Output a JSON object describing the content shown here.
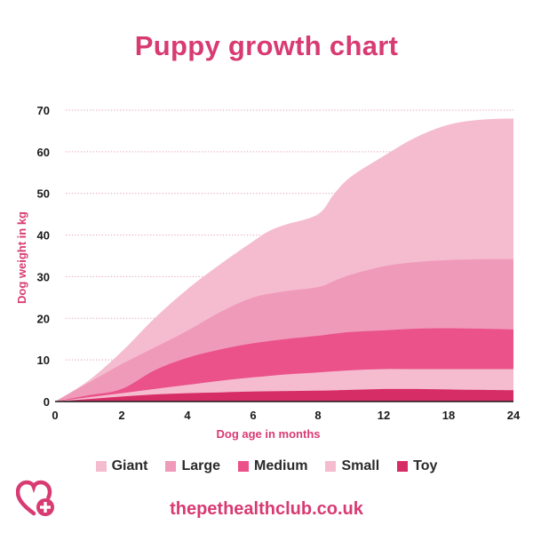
{
  "chart_data": {
    "type": "area",
    "stacked": false,
    "title": "Puppy growth chart",
    "xlabel": "Dog age in months",
    "ylabel": "Dog weight in kg",
    "ylim": [
      0,
      70
    ],
    "yticks": [
      0,
      10,
      20,
      30,
      40,
      50,
      60,
      70
    ],
    "xticks": [
      "0",
      "2",
      "4",
      "6",
      "8",
      "12",
      "18",
      "24"
    ],
    "grid": "horizontal dotted",
    "legend_position": "bottom",
    "series": [
      {
        "name": "Giant",
        "color": "#f5bccf",
        "x": [
          0,
          1,
          2,
          3,
          4,
          5,
          6,
          6.5,
          7,
          8,
          9,
          10,
          12,
          15,
          18,
          21,
          24
        ],
        "values": [
          0,
          5,
          12,
          20,
          27,
          33,
          38.5,
          41,
          42.5,
          45,
          50,
          54,
          59,
          63.5,
          66.5,
          67.7,
          68
        ]
      },
      {
        "name": "Large",
        "color": "#f09aba",
        "x": [
          0,
          1,
          2,
          3,
          4,
          5,
          6,
          7,
          8,
          9,
          10,
          12,
          15,
          18,
          21,
          24
        ],
        "values": [
          0,
          4.5,
          9,
          13,
          17,
          21.5,
          25,
          26.5,
          27.5,
          29,
          30.5,
          32.5,
          33.5,
          34,
          34.2,
          34.2
        ]
      },
      {
        "name": "Medium",
        "color": "#ea5289",
        "x": [
          0,
          1,
          2,
          3,
          4,
          5,
          6,
          7,
          8,
          9,
          10,
          12,
          15,
          18,
          21,
          24
        ],
        "values": [
          0,
          1.5,
          3,
          7.5,
          10.5,
          12.5,
          14,
          15,
          15.8,
          16.3,
          16.7,
          17.1,
          17.5,
          17.6,
          17.5,
          17.3
        ]
      },
      {
        "name": "Small",
        "color": "#f5bccf",
        "x": [
          0,
          1,
          2,
          3,
          4,
          5,
          6,
          7,
          8,
          10,
          12,
          15,
          18,
          21,
          24
        ],
        "values": [
          0,
          1,
          2,
          3,
          4,
          5,
          5.8,
          6.5,
          7,
          7.5,
          7.8,
          7.8,
          7.8,
          7.8,
          7.8
        ]
      },
      {
        "name": "Toy",
        "color": "#d72d66",
        "x": [
          0,
          1,
          2,
          3,
          4,
          5,
          6,
          8,
          10,
          12,
          15,
          18,
          21,
          24
        ],
        "values": [
          0,
          0.6,
          1.2,
          1.7,
          2,
          2.2,
          2.4,
          2.6,
          2.8,
          3,
          3,
          2.9,
          2.8,
          2.7
        ]
      }
    ]
  },
  "footer": {
    "url": "thepethealthclub.co.uk"
  },
  "colors": {
    "brand": "#d83a72",
    "grid": "#e59ab6"
  },
  "icons": {
    "logo": "heart-plus-icon"
  }
}
